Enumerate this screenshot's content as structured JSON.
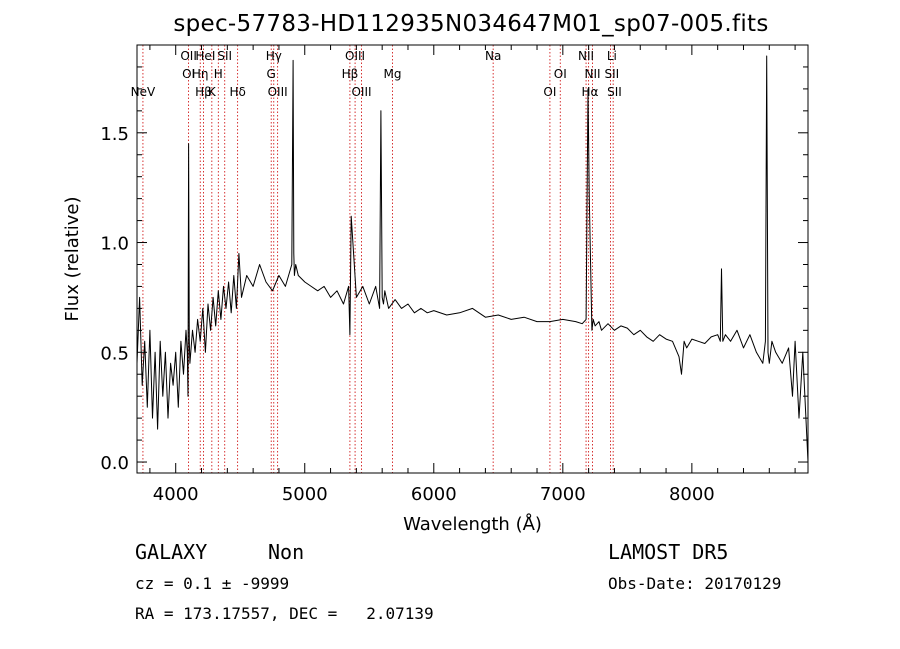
{
  "chart_data": {
    "type": "line",
    "title": "spec-57783-HD112935N034647M01_sp07-005.fits",
    "xlabel": "Wavelength (Å)",
    "ylabel": "Flux (relative)",
    "xlim": [
      3700,
      8900
    ],
    "ylim": [
      -0.05,
      1.9
    ],
    "x_ticks": [
      4000,
      5000,
      6000,
      7000,
      8000
    ],
    "y_ticks": [
      0.0,
      0.5,
      1.0,
      1.5
    ],
    "x_tick_labels": [
      "4000",
      "5000",
      "6000",
      "7000",
      "8000"
    ],
    "y_tick_labels": [
      "0.0",
      "0.5",
      "1.0",
      "1.5"
    ],
    "grid": false,
    "spectral_lines": [
      {
        "label": "NeV",
        "wavelength": 3746,
        "row": 3
      },
      {
        "label": "OII",
        "wavelength": 4100,
        "row": 0
      },
      {
        "label": "OI",
        "wavelength": 4100,
        "row": 1
      },
      {
        "label": "Hη",
        "wavelength": 4190,
        "row": 1
      },
      {
        "label": "Hβ",
        "wavelength": 4215,
        "row": 2
      },
      {
        "label": "HeI",
        "wavelength": 4230,
        "row": 0
      },
      {
        "label": "K",
        "wavelength": 4280,
        "row": 2
      },
      {
        "label": "H",
        "wavelength": 4330,
        "row": 1
      },
      {
        "label": "SII",
        "wavelength": 4380,
        "row": 0
      },
      {
        "label": "Hδ",
        "wavelength": 4480,
        "row": 2
      },
      {
        "label": "Hγ",
        "wavelength": 4760,
        "row": 0
      },
      {
        "label": "G",
        "wavelength": 4740,
        "row": 1
      },
      {
        "label": "OIII",
        "wavelength": 4790,
        "row": 2
      },
      {
        "label": "Hβ",
        "wavelength": 5350,
        "row": 1
      },
      {
        "label": "OIII",
        "wavelength": 5390,
        "row": 0
      },
      {
        "label": "OIII",
        "wavelength": 5440,
        "row": 2
      },
      {
        "label": "Mg",
        "wavelength": 5680,
        "row": 1
      },
      {
        "label": "Na",
        "wavelength": 6460,
        "row": 0
      },
      {
        "label": "OI",
        "wavelength": 6900,
        "row": 2
      },
      {
        "label": "OI",
        "wavelength": 6980,
        "row": 1
      },
      {
        "label": "NII",
        "wavelength": 7180,
        "row": 0
      },
      {
        "label": "NII",
        "wavelength": 7230,
        "row": 1
      },
      {
        "label": "Hα",
        "wavelength": 7210,
        "row": 2
      },
      {
        "label": "Li",
        "wavelength": 7380,
        "row": 0
      },
      {
        "label": "SII",
        "wavelength": 7380,
        "row": 1
      },
      {
        "label": "SII",
        "wavelength": 7400,
        "row": 2
      }
    ],
    "line_wavelengths": [
      3746,
      4100,
      4190,
      4215,
      4280,
      4330,
      4380,
      4480,
      4740,
      4760,
      4790,
      5350,
      5390,
      5440,
      5680,
      6460,
      6900,
      6980,
      7180,
      7200,
      7230,
      7370,
      7390
    ],
    "series": [
      {
        "x": [
          3700,
          3720,
          3740,
          3760,
          3780,
          3800,
          3820,
          3840,
          3860,
          3880,
          3900,
          3920,
          3940,
          3960,
          3980,
          4000,
          4020,
          4040,
          4060,
          4080,
          4090,
          4095,
          4100,
          4105,
          4110,
          4130,
          4150,
          4170,
          4190,
          4210,
          4230,
          4250,
          4270,
          4290,
          4310,
          4330,
          4350,
          4370,
          4390,
          4410,
          4430,
          4450,
          4470,
          4490,
          4510,
          4550,
          4600,
          4650,
          4700,
          4750,
          4800,
          4850,
          4900,
          4910,
          4915,
          4920,
          4930,
          4950,
          5000,
          5050,
          5100,
          5150,
          5200,
          5250,
          5300,
          5340,
          5350,
          5360,
          5400,
          5450,
          5500,
          5550,
          5580,
          5590,
          5600,
          5610,
          5620,
          5650,
          5700,
          5750,
          5800,
          5850,
          5900,
          5950,
          6000,
          6100,
          6200,
          6300,
          6400,
          6500,
          6600,
          6700,
          6800,
          6900,
          7000,
          7100,
          7150,
          7180,
          7195,
          7205,
          7215,
          7225,
          7235,
          7250,
          7280,
          7300,
          7350,
          7400,
          7450,
          7500,
          7550,
          7600,
          7650,
          7700,
          7750,
          7800,
          7850,
          7900,
          7920,
          7940,
          7960,
          8000,
          8050,
          8100,
          8150,
          8200,
          8220,
          8230,
          8240,
          8260,
          8300,
          8350,
          8400,
          8450,
          8500,
          8550,
          8570,
          8580,
          8590,
          8600,
          8620,
          8650,
          8700,
          8750,
          8780,
          8800,
          8830,
          8860,
          8880,
          8900
        ],
        "y": [
          0.45,
          0.75,
          0.35,
          0.55,
          0.25,
          0.6,
          0.2,
          0.5,
          0.15,
          0.55,
          0.3,
          0.5,
          0.2,
          0.45,
          0.35,
          0.5,
          0.25,
          0.55,
          0.4,
          0.6,
          0.5,
          0.3,
          1.45,
          0.55,
          0.45,
          0.6,
          0.5,
          0.65,
          0.55,
          0.7,
          0.5,
          0.72,
          0.6,
          0.75,
          0.62,
          0.78,
          0.65,
          0.8,
          0.7,
          0.82,
          0.68,
          0.85,
          0.7,
          0.95,
          0.75,
          0.85,
          0.8,
          0.9,
          0.82,
          0.78,
          0.85,
          0.8,
          0.9,
          1.83,
          0.95,
          0.85,
          0.9,
          0.85,
          0.82,
          0.8,
          0.78,
          0.8,
          0.75,
          0.78,
          0.72,
          0.8,
          0.58,
          1.12,
          0.75,
          0.8,
          0.72,
          0.8,
          0.7,
          1.6,
          0.75,
          0.72,
          0.78,
          0.7,
          0.74,
          0.7,
          0.72,
          0.68,
          0.7,
          0.68,
          0.69,
          0.67,
          0.68,
          0.7,
          0.66,
          0.67,
          0.65,
          0.66,
          0.64,
          0.64,
          0.65,
          0.64,
          0.63,
          0.65,
          1.7,
          1.2,
          0.9,
          0.6,
          0.65,
          0.62,
          0.64,
          0.6,
          0.63,
          0.6,
          0.62,
          0.61,
          0.58,
          0.6,
          0.57,
          0.55,
          0.58,
          0.56,
          0.55,
          0.48,
          0.4,
          0.55,
          0.52,
          0.56,
          0.55,
          0.54,
          0.57,
          0.58,
          0.55,
          0.88,
          0.55,
          0.58,
          0.55,
          0.6,
          0.52,
          0.58,
          0.5,
          0.45,
          0.55,
          1.85,
          0.5,
          0.45,
          0.55,
          0.5,
          0.45,
          0.52,
          0.3,
          0.55,
          0.2,
          0.5,
          0.25,
          0.0
        ]
      }
    ]
  },
  "info": {
    "object_class": "GALAXY",
    "subclass": "Non",
    "survey": "LAMOST DR5",
    "redshift": "cz = 0.1 ± -9999",
    "obs_date": "Obs-Date: 20170129",
    "coords": "RA = 173.17557, DEC =   2.07139"
  },
  "colors": {
    "line": "#000000",
    "marker_lines": "#cc0000",
    "background": "#ffffff"
  }
}
